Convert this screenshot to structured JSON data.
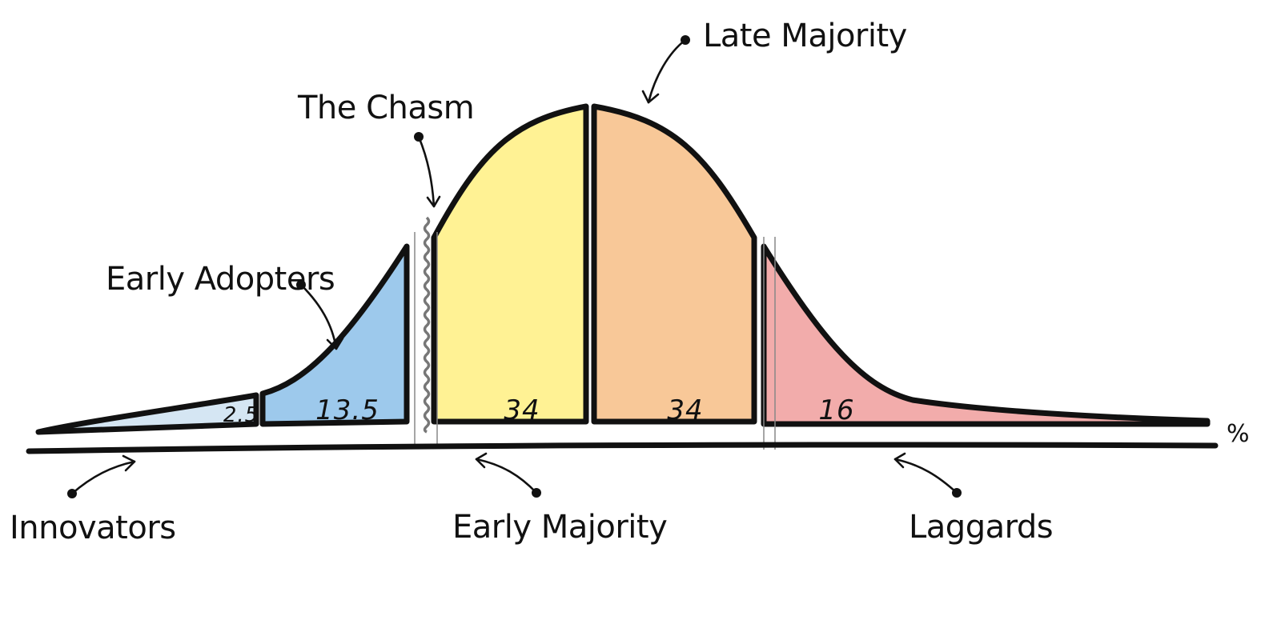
{
  "segments": [
    {
      "id": "innovators",
      "label": "Innovators",
      "value": "2.5",
      "color": "#d5e6f3"
    },
    {
      "id": "early-adopters",
      "label": "Early Adopters",
      "value": "13.5",
      "color": "#9dc9ec"
    },
    {
      "id": "early-majority",
      "label": "Early Majority",
      "value": "34",
      "color": "#fff294"
    },
    {
      "id": "late-majority",
      "label": "Late Majority",
      "value": "34",
      "color": "#f8c898"
    },
    {
      "id": "laggards",
      "label": "Laggards",
      "value": "16",
      "color": "#f2acab"
    }
  ],
  "chasm": {
    "label": "The Chasm",
    "color": "#777777"
  },
  "axis": {
    "unit": "%"
  }
}
